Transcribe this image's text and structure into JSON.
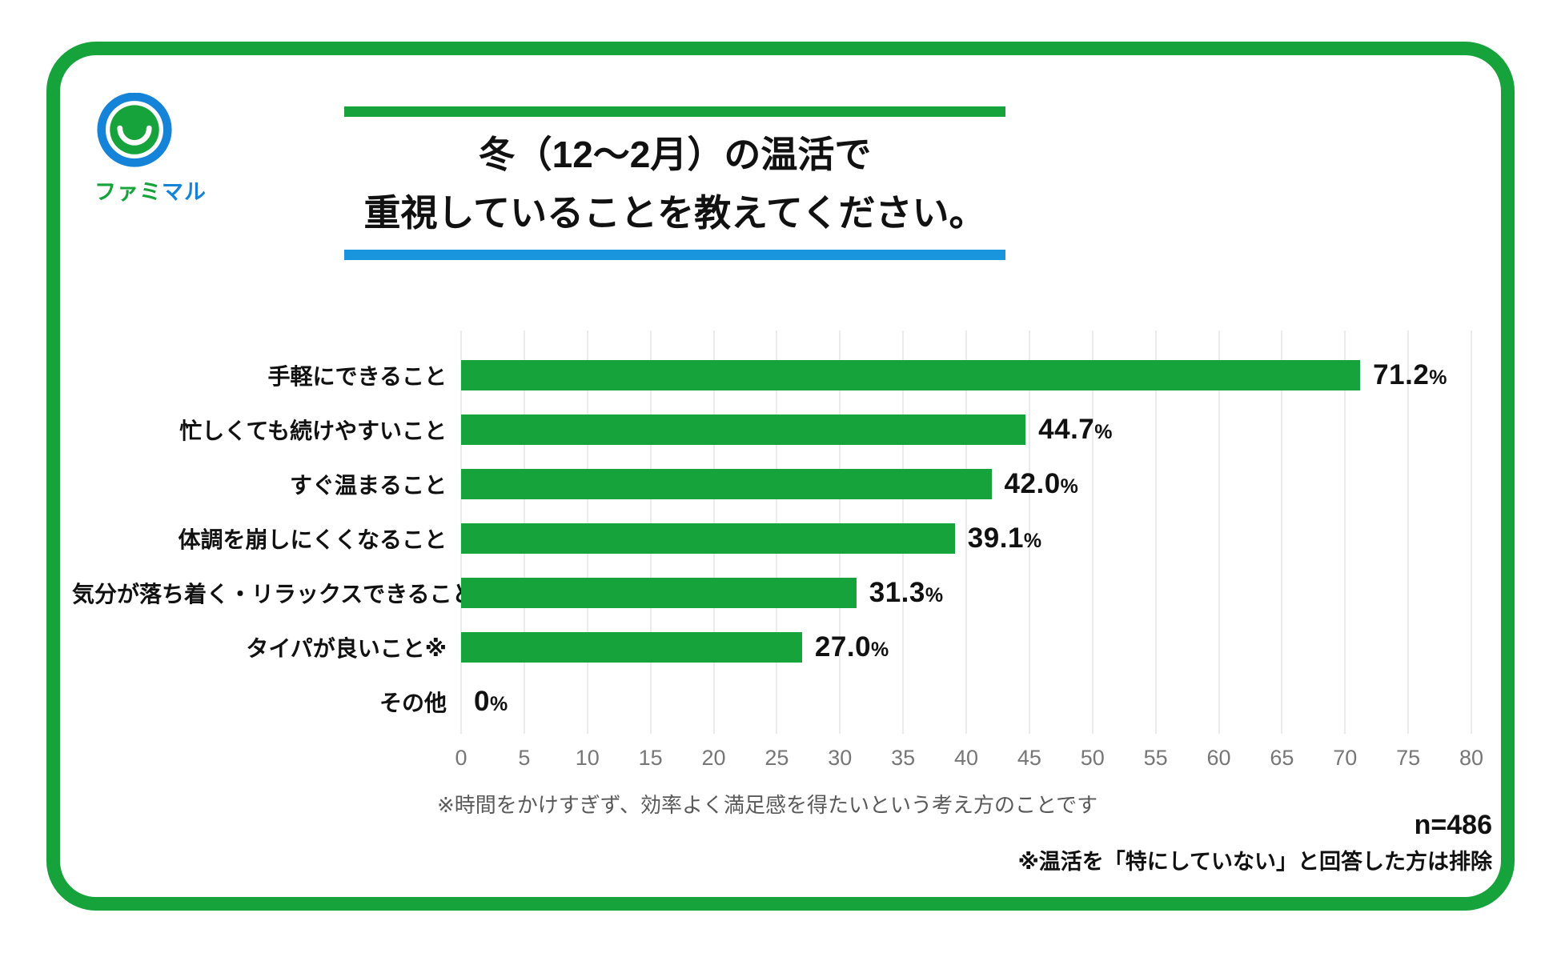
{
  "logo": {
    "brand_green": "ファミ",
    "brand_blue": "マル"
  },
  "title": {
    "line1": "冬（12～2月）の温活で",
    "line2": "重視していることを教えてください。"
  },
  "chart_data": {
    "type": "bar",
    "orientation": "horizontal",
    "categories": [
      "手軽にできること",
      "忙しくても続けやすいこと",
      "すぐ温まること",
      "体調を崩しにくくなること",
      "気分が落ち着く・リラックスできること",
      "タイパが良いこと※",
      "その他"
    ],
    "values": [
      71.2,
      44.7,
      42.0,
      39.1,
      31.3,
      27.0,
      0
    ],
    "value_labels": [
      "71.2%",
      "44.7%",
      "42.0%",
      "39.1%",
      "31.3%",
      "27.0%",
      "0%"
    ],
    "xlim": [
      0,
      80
    ],
    "ticks": [
      0,
      5,
      10,
      15,
      20,
      25,
      30,
      35,
      40,
      45,
      50,
      55,
      60,
      65,
      70,
      75,
      80
    ],
    "grid": true,
    "bar_color": "#17A33C",
    "legend": "none"
  },
  "footnotes": {
    "taipa_note": "※時間をかけすぎず、効率よく満足感を得たいという考え方のことです",
    "sample_size": "n=486",
    "exclusion_note": "※温活を「特にしていない」と回答した方は排除"
  },
  "colors": {
    "green": "#17A33C",
    "blue": "#1895DC",
    "logo_blue": "#1583D7",
    "gridline": "#EBEBEB",
    "tick_gray": "#767676",
    "footnote_gray": "#595959"
  }
}
